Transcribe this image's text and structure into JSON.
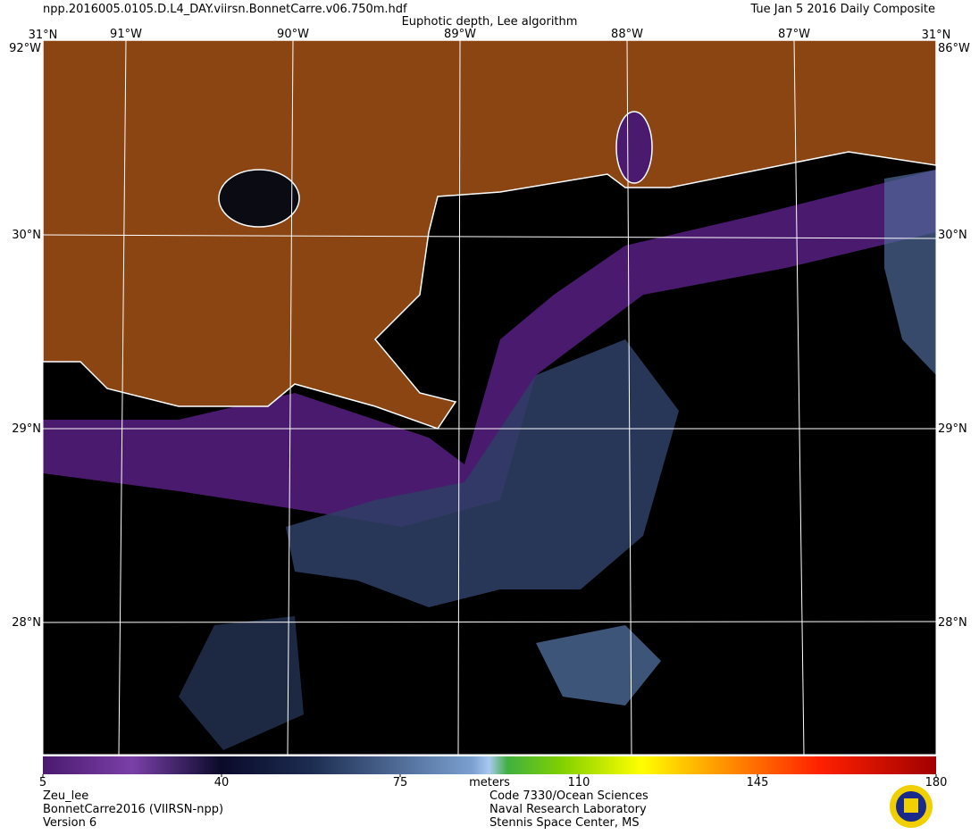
{
  "header": {
    "filename": "npp.2016005.0105.D.L4_DAY.viirsn.BonnetCarre.v06.750m.hdf",
    "title": "Euphotic depth, Lee algorithm",
    "date": "Tue Jan  5 2016 Daily Composite"
  },
  "graticule": {
    "corner_labels": [
      "31°N",
      "31°N",
      "92°W",
      "86°W"
    ],
    "lon_labels": [
      "91°W",
      "90°W",
      "89°W",
      "88°W",
      "87°W"
    ],
    "lat_labels": [
      "30°N",
      "29°N",
      "28°N"
    ]
  },
  "colorbar": {
    "range": [
      5,
      180
    ],
    "ticks": [
      5,
      40,
      75,
      110,
      145,
      180
    ],
    "unit": "meters"
  },
  "footer": {
    "left": [
      "Zeu_lee",
      "BonnetCarre2016 (VIIRSN-npp)",
      "Version 6"
    ],
    "right": [
      "Code 7330/Ocean Sciences",
      "Naval Research Laboratory",
      "Stennis Space Center, MS"
    ]
  }
}
